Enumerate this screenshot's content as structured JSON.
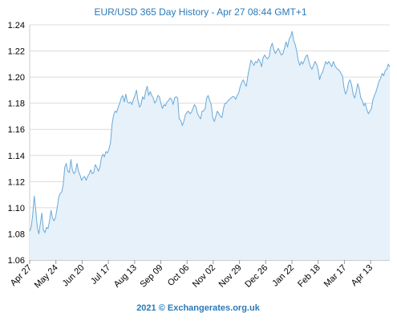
{
  "chart_data": {
    "type": "area",
    "title": "EUR/USD 365 Day History - Apr 27 08:44 GMT+1",
    "footer": "2021 © Exchangerates.org.uk",
    "xlabel": "",
    "ylabel": "",
    "ylim": [
      1.06,
      1.24
    ],
    "yticks": [
      "1.24",
      "1.22",
      "1.20",
      "1.18",
      "1.16",
      "1.14",
      "1.12",
      "1.10",
      "1.08",
      "1.06"
    ],
    "xticks": [
      "Apr 27",
      "May 24",
      "Jun 20",
      "Jul 17",
      "Aug 13",
      "Sep 09",
      "Oct 06",
      "Nov 02",
      "Nov 29",
      "Dec 26",
      "Jan 22",
      "Feb 18",
      "Mar 17",
      "Apr 13"
    ],
    "grid": true,
    "colors": {
      "line": "#6aaad8",
      "fill": "#e6f1fa",
      "title": "#2a7ab8"
    },
    "series": [
      {
        "values": [
          1.082,
          1.085,
          1.095,
          1.109,
          1.098,
          1.085,
          1.08,
          1.088,
          1.096,
          1.083,
          1.081,
          1.085,
          1.084,
          1.09,
          1.098,
          1.092,
          1.09,
          1.093,
          1.1,
          1.108,
          1.111,
          1.112,
          1.118,
          1.131,
          1.134,
          1.128,
          1.127,
          1.137,
          1.129,
          1.126,
          1.128,
          1.134,
          1.128,
          1.125,
          1.121,
          1.123,
          1.124,
          1.121,
          1.124,
          1.126,
          1.129,
          1.126,
          1.127,
          1.133,
          1.131,
          1.128,
          1.131,
          1.138,
          1.141,
          1.139,
          1.143,
          1.142,
          1.145,
          1.15,
          1.164,
          1.171,
          1.174,
          1.173,
          1.177,
          1.18,
          1.184,
          1.186,
          1.181,
          1.187,
          1.181,
          1.18,
          1.181,
          1.179,
          1.183,
          1.186,
          1.19,
          1.182,
          1.177,
          1.179,
          1.185,
          1.183,
          1.189,
          1.193,
          1.186,
          1.189,
          1.186,
          1.184,
          1.18,
          1.182,
          1.186,
          1.185,
          1.18,
          1.176,
          1.179,
          1.178,
          1.181,
          1.182,
          1.184,
          1.183,
          1.179,
          1.184,
          1.185,
          1.184,
          1.168,
          1.167,
          1.163,
          1.166,
          1.171,
          1.173,
          1.174,
          1.172,
          1.173,
          1.176,
          1.179,
          1.177,
          1.172,
          1.17,
          1.168,
          1.174,
          1.174,
          1.176,
          1.184,
          1.186,
          1.182,
          1.179,
          1.169,
          1.166,
          1.17,
          1.174,
          1.172,
          1.17,
          1.169,
          1.176,
          1.18,
          1.18,
          1.182,
          1.183,
          1.184,
          1.185,
          1.185,
          1.183,
          1.186,
          1.188,
          1.193,
          1.196,
          1.198,
          1.195,
          1.193,
          1.201,
          1.207,
          1.213,
          1.211,
          1.209,
          1.212,
          1.211,
          1.214,
          1.212,
          1.208,
          1.215,
          1.217,
          1.215,
          1.214,
          1.216,
          1.223,
          1.226,
          1.221,
          1.218,
          1.22,
          1.222,
          1.219,
          1.217,
          1.218,
          1.222,
          1.227,
          1.223,
          1.229,
          1.231,
          1.235,
          1.228,
          1.225,
          1.22,
          1.213,
          1.209,
          1.212,
          1.21,
          1.213,
          1.216,
          1.217,
          1.212,
          1.208,
          1.206,
          1.209,
          1.212,
          1.21,
          1.206,
          1.198,
          1.202,
          1.204,
          1.208,
          1.212,
          1.21,
          1.212,
          1.21,
          1.208,
          1.212,
          1.209,
          1.207,
          1.206,
          1.205,
          1.203,
          1.201,
          1.192,
          1.187,
          1.19,
          1.196,
          1.198,
          1.194,
          1.187,
          1.184,
          1.189,
          1.195,
          1.191,
          1.184,
          1.182,
          1.178,
          1.18,
          1.175,
          1.172,
          1.174,
          1.176,
          1.183,
          1.186,
          1.189,
          1.193,
          1.197,
          1.199,
          1.203,
          1.201,
          1.205,
          1.206,
          1.21,
          1.208
        ]
      }
    ]
  }
}
